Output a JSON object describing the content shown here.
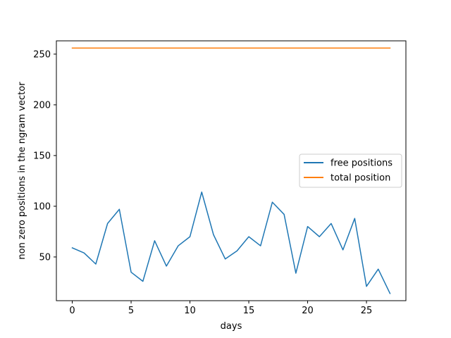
{
  "chart_data": {
    "type": "line",
    "xlabel": "days",
    "ylabel": "non zero positions in the ngram vector",
    "xlim": [
      -1.35,
      28.35
    ],
    "ylim": [
      6.9,
      263.1
    ],
    "xticks": [
      0,
      5,
      10,
      15,
      20,
      25
    ],
    "yticks": [
      50,
      100,
      150,
      200,
      250
    ],
    "grid": false,
    "legend_position": "center-right",
    "x": [
      0,
      1,
      2,
      3,
      4,
      5,
      6,
      7,
      8,
      9,
      10,
      11,
      12,
      13,
      14,
      15,
      16,
      17,
      18,
      19,
      20,
      21,
      22,
      23,
      24,
      25,
      26,
      27
    ],
    "series": [
      {
        "name": "free positions",
        "color": "#1f77b4",
        "values": [
          59,
          54,
          43,
          83,
          97,
          35,
          26,
          66,
          41,
          61,
          70,
          114,
          72,
          48,
          56,
          70,
          61,
          104,
          92,
          34,
          80,
          70,
          83,
          57,
          88,
          21,
          38,
          14
        ]
      },
      {
        "name": "total position",
        "color": "#ff7f0e",
        "values": [
          256,
          256,
          256,
          256,
          256,
          256,
          256,
          256,
          256,
          256,
          256,
          256,
          256,
          256,
          256,
          256,
          256,
          256,
          256,
          256,
          256,
          256,
          256,
          256,
          256,
          256,
          256,
          256
        ]
      }
    ]
  }
}
